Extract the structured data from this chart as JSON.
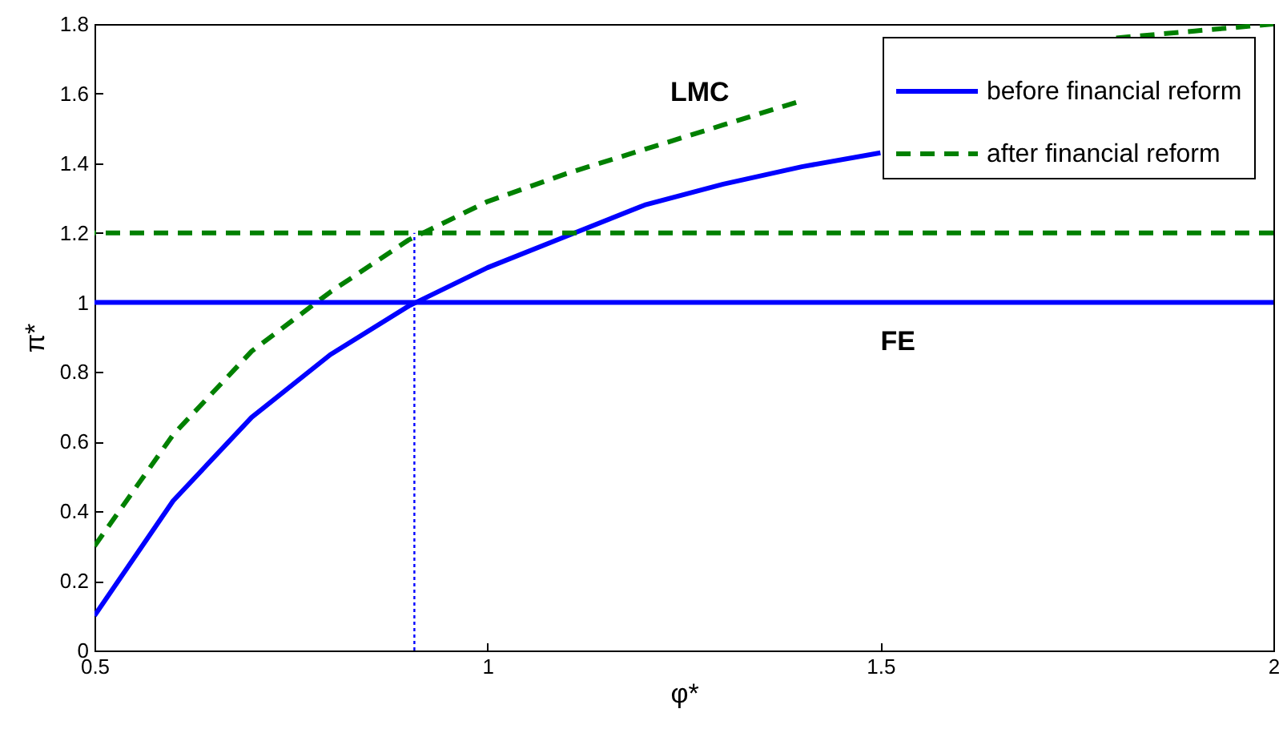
{
  "chart_data": {
    "type": "line",
    "xlabel": "φ*",
    "ylabel": "π*",
    "xlim": [
      0.5,
      2
    ],
    "ylim": [
      0,
      1.8
    ],
    "xticks": [
      0.5,
      1,
      1.5,
      2
    ],
    "yticks": [
      0,
      0.2,
      0.4,
      0.6,
      0.8,
      1,
      1.2,
      1.4,
      1.6,
      1.8
    ],
    "legend": "top right",
    "grid": false,
    "series": [
      {
        "name": "before financial reform",
        "color": "#0000ff",
        "line_style": "solid",
        "x": [
          0.5,
          0.6,
          0.7,
          0.8,
          0.9,
          1.0,
          1.1,
          1.2,
          1.3,
          1.4,
          1.5
        ],
        "values": [
          0.1,
          0.43,
          0.67,
          0.85,
          0.99,
          1.1,
          1.19,
          1.28,
          1.34,
          1.39,
          1.43
        ]
      },
      {
        "name": "after financial reform",
        "color": "#008000",
        "line_style": "dashed",
        "x": [
          0.5,
          0.6,
          0.7,
          0.8,
          0.9,
          1.0,
          1.1,
          1.2,
          1.3,
          1.4,
          1.5,
          1.6,
          1.7,
          1.8,
          1.9,
          2.0
        ],
        "values": [
          0.3,
          0.62,
          0.86,
          1.03,
          1.18,
          1.29,
          1.37,
          1.44,
          1.51,
          1.58,
          null,
          null,
          null,
          1.76,
          1.78,
          1.8
        ]
      },
      {
        "color": "#0000ff",
        "line_style": "dotted",
        "x": [
          0.907,
          0.907
        ],
        "values": [
          0,
          1.2
        ]
      }
    ],
    "ref_lines": [
      {
        "axis": "y",
        "value": 1,
        "color": "#0000ff",
        "line_style": "solid"
      },
      {
        "axis": "y",
        "value": 1.2,
        "color": "#008000",
        "line_style": "dashed"
      }
    ],
    "annotations": [
      "LMC",
      "FE"
    ]
  }
}
